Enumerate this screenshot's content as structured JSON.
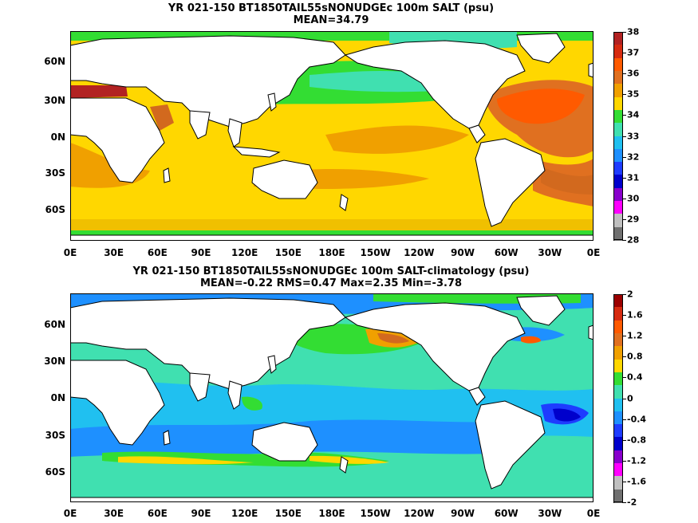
{
  "panels": [
    {
      "title_line1": "YR 021-150 BT1850TAIL55sNONUDGEc 100m SALT (psu)",
      "title_line2": "MEAN=34.79",
      "colorbar": {
        "labels": [
          "38",
          "37",
          "36",
          "35",
          "34",
          "33",
          "32",
          "31",
          "30",
          "29",
          "28"
        ],
        "colors": [
          "#b22222",
          "#d62b10",
          "#ff5a00",
          "#e07020",
          "#f0a000",
          "#ffd700",
          "#33dd33",
          "#40e0b0",
          "#20c0f0",
          "#1e90ff",
          "#1e3cff",
          "#0000cc",
          "#8800cc",
          "#ff00ff",
          "#c0c0c0",
          "#707070"
        ]
      }
    },
    {
      "title_line1": "YR 021-150 BT1850TAIL55sNONUDGEc 100m SALT-climatology (psu)",
      "title_line2": "MEAN=-0.22   RMS=0.47   Max=2.35   Min=-3.78",
      "colorbar": {
        "labels": [
          "2",
          "1.6",
          "1.2",
          "0.8",
          "0.4",
          "0",
          "-0.4",
          "-0.8",
          "-1.2",
          "-1.6",
          "-2"
        ],
        "colors": [
          "#9b0000",
          "#d62b10",
          "#ff5a00",
          "#e07020",
          "#f0a000",
          "#ffd700",
          "#33dd33",
          "#40e0b0",
          "#20c0f0",
          "#1e90ff",
          "#1e3cff",
          "#0000cc",
          "#8800cc",
          "#ff00ff",
          "#c0c0c0",
          "#707070"
        ]
      }
    }
  ],
  "axes": {
    "lon_labels": [
      "0E",
      "30E",
      "60E",
      "90E",
      "120E",
      "150E",
      "180E",
      "150W",
      "120W",
      "90W",
      "60W",
      "30W",
      "0E"
    ],
    "lat_labels": [
      "60N",
      "30N",
      "0N",
      "30S",
      "60S"
    ]
  }
}
